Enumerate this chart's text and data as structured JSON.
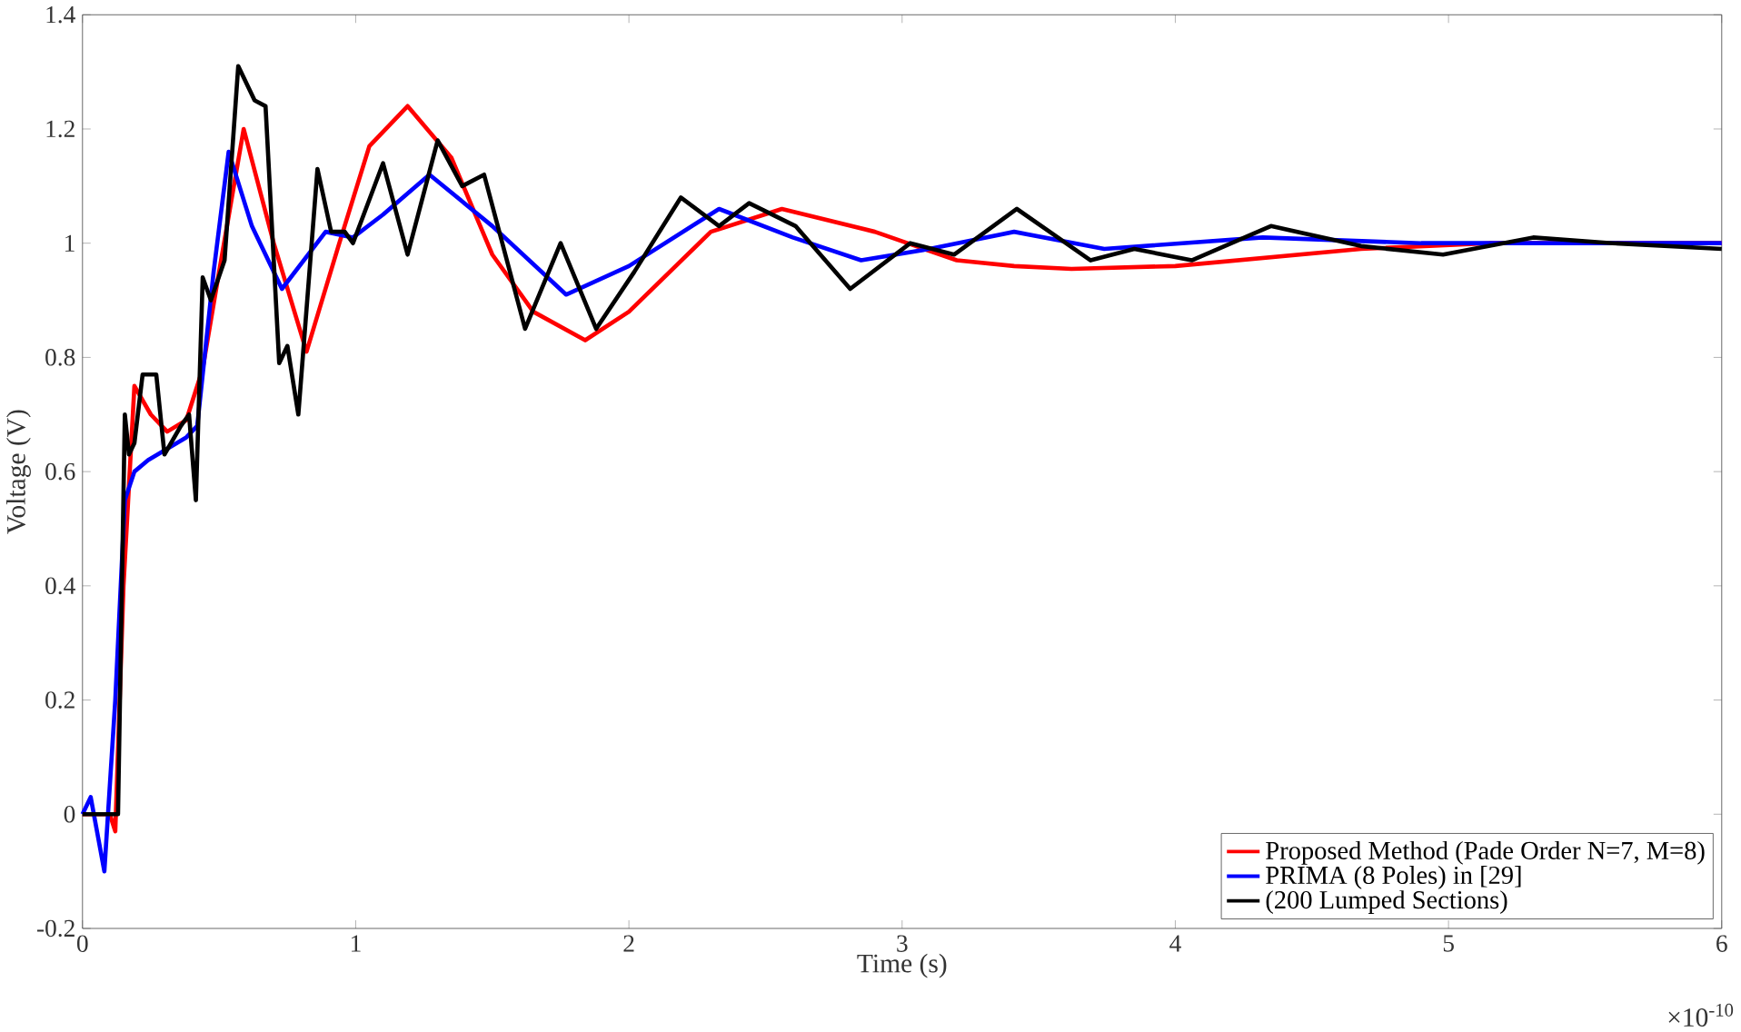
{
  "chart_data": {
    "type": "line",
    "xlabel": "Time (s)",
    "ylabel": "Voltage (V)",
    "xlim": [
      0,
      6
    ],
    "xticks": [
      0,
      1,
      2,
      3,
      4,
      5,
      6
    ],
    "ylim": [
      -0.2,
      1.4
    ],
    "yticks": [
      -0.2,
      0,
      0.2,
      0.4,
      0.6,
      0.8,
      1,
      1.2,
      1.4
    ],
    "annotations": [
      "×10$^{-10}$"
    ],
    "legend": "bottom right",
    "grid": false,
    "marker": "none",
    "line_style": "solid",
    "series": [
      {
        "name": "Proposed Method (Pade Order N=7, M=8)",
        "color": "#ff0000",
        "x": [
          0,
          0.1,
          0.12,
          0.15,
          0.19,
          0.25,
          0.31,
          0.38,
          0.44,
          0.5,
          0.59,
          0.7,
          0.82,
          0.94,
          1.05,
          1.19,
          1.35,
          1.5,
          1.65,
          1.84,
          2.0,
          2.3,
          2.56,
          2.9,
          3.2,
          3.41,
          3.62,
          4.0,
          4.68,
          5.15,
          6
        ],
        "values": [
          0,
          0,
          -0.03,
          0.4,
          0.75,
          0.7,
          0.67,
          0.69,
          0.78,
          0.95,
          1.2,
          1.0,
          0.81,
          1.0,
          1.17,
          1.24,
          1.15,
          0.98,
          0.88,
          0.83,
          0.88,
          1.02,
          1.06,
          1.02,
          0.97,
          0.96,
          0.955,
          0.96,
          0.99,
          1.0,
          1.0
        ]
      },
      {
        "name": "PRIMA (8 Poles) in [29]",
        "color": "#0000ff",
        "x": [
          0,
          0.03,
          0.08,
          0.12,
          0.155,
          0.19,
          0.24,
          0.38,
          0.42,
          0.48,
          0.535,
          0.62,
          0.73,
          0.89,
          0.99,
          1.1,
          1.27,
          1.5,
          1.77,
          2.0,
          2.33,
          2.6,
          2.85,
          3.1,
          3.41,
          3.74,
          4.32,
          4.9,
          6
        ],
        "values": [
          0,
          0.03,
          -0.1,
          0.2,
          0.55,
          0.6,
          0.62,
          0.66,
          0.68,
          0.95,
          1.16,
          1.03,
          0.92,
          1.02,
          1.01,
          1.05,
          1.12,
          1.03,
          0.91,
          0.96,
          1.06,
          1.01,
          0.97,
          0.99,
          1.02,
          0.99,
          1.01,
          1.0,
          1.0
        ]
      },
      {
        "name": "(200 Lumped Sections)",
        "color": "#000000",
        "x": [
          0,
          0.13,
          0.155,
          0.17,
          0.19,
          0.22,
          0.27,
          0.3,
          0.36,
          0.39,
          0.415,
          0.44,
          0.47,
          0.52,
          0.57,
          0.63,
          0.67,
          0.72,
          0.75,
          0.79,
          0.86,
          0.91,
          0.96,
          0.99,
          1.1,
          1.19,
          1.3,
          1.39,
          1.47,
          1.62,
          1.75,
          1.88,
          2.02,
          2.19,
          2.33,
          2.44,
          2.61,
          2.81,
          3.03,
          3.19,
          3.42,
          3.69,
          3.85,
          4.06,
          4.35,
          4.68,
          4.98,
          5.31,
          5.6,
          6
        ],
        "values": [
          0,
          0,
          0.7,
          0.63,
          0.65,
          0.77,
          0.77,
          0.63,
          0.68,
          0.7,
          0.55,
          0.94,
          0.9,
          0.97,
          1.31,
          1.25,
          1.24,
          0.79,
          0.82,
          0.7,
          1.13,
          1.02,
          1.02,
          1.0,
          1.14,
          0.98,
          1.18,
          1.1,
          1.12,
          0.85,
          1.0,
          0.85,
          0.95,
          1.08,
          1.03,
          1.07,
          1.03,
          0.92,
          1.0,
          0.98,
          1.06,
          0.97,
          0.99,
          0.97,
          1.03,
          0.995,
          0.98,
          1.01,
          1.0,
          0.99
        ]
      }
    ]
  }
}
